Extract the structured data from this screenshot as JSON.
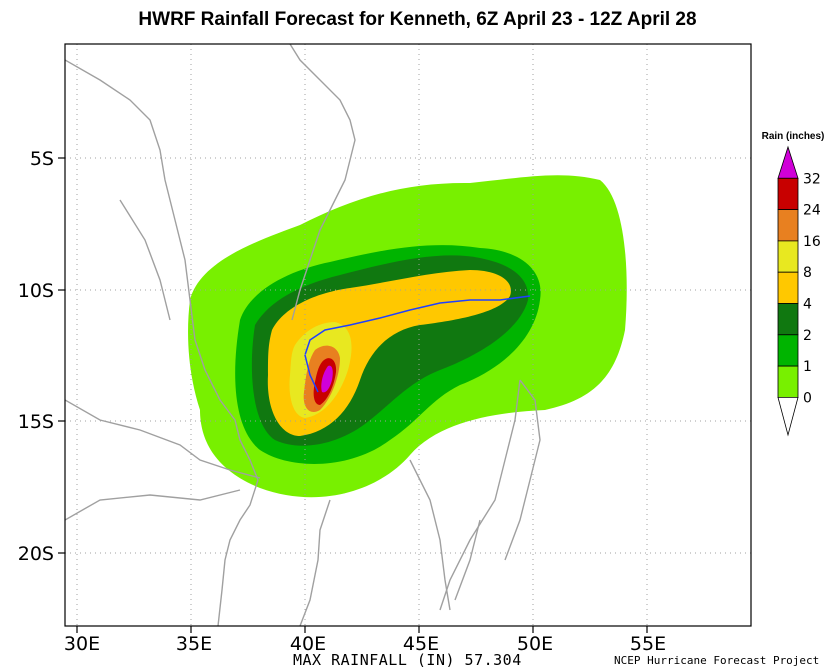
{
  "title": "HWRF Rainfall Forecast for Kenneth, 6Z April 23 - 12Z April 28",
  "map": {
    "latitude_labels": [
      "5S",
      "10S",
      "15S",
      "20S"
    ],
    "longitude_labels": [
      "30E",
      "35E",
      "40E",
      "45E",
      "50E",
      "55E"
    ],
    "gridlines": "dotted"
  },
  "legend": {
    "title": "Rain (inches)",
    "ticks": [
      "32",
      "24",
      "16",
      "8",
      "4",
      "2",
      "1",
      "0"
    ],
    "colors": [
      "#d000d8",
      "#c80000",
      "#e88020",
      "#e8e820",
      "#ffc800",
      "#107810",
      "#00b400",
      "#78f000",
      "#ffffff"
    ]
  },
  "footer": {
    "max_rainfall": "MAX RAINFALL (IN) 57.304",
    "credit": "NCEP Hurricane Forecast Project"
  }
}
